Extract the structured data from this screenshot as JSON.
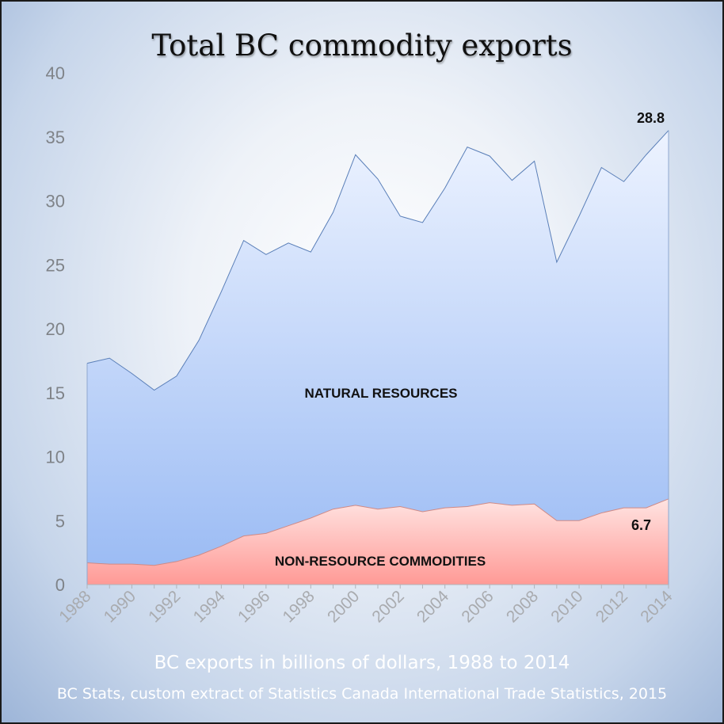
{
  "chart_data": {
    "type": "area",
    "title": "Total BC commodity exports",
    "subtitle": "BC exports in billions of dollars, 1988 to 2014",
    "source": "BC Stats, custom extract of Statistics Canada International Trade Statistics, 2015",
    "stacked": true,
    "x": [
      1988,
      1989,
      1990,
      1991,
      1992,
      1993,
      1994,
      1995,
      1996,
      1997,
      1998,
      1999,
      2000,
      2001,
      2002,
      2003,
      2004,
      2005,
      2006,
      2007,
      2008,
      2009,
      2010,
      2011,
      2012,
      2013,
      2014
    ],
    "x_tick_labels": [
      "1988",
      "1990",
      "1992",
      "1994",
      "1996",
      "1998",
      "2000",
      "2002",
      "2004",
      "2006",
      "2008",
      "2010",
      "2012",
      "2014"
    ],
    "ylim": [
      0,
      40
    ],
    "y_ticks": [
      0,
      5,
      10,
      15,
      20,
      25,
      30,
      35,
      40
    ],
    "grid": false,
    "series": [
      {
        "name": "NON-RESOURCE COMMODITIES",
        "color": "#ff9a96",
        "values": [
          1.7,
          1.6,
          1.6,
          1.5,
          1.8,
          2.3,
          3.0,
          3.8,
          4.0,
          4.6,
          5.2,
          5.9,
          6.2,
          5.9,
          6.1,
          5.7,
          6.0,
          6.1,
          6.4,
          6.2,
          6.3,
          5.0,
          5.0,
          5.6,
          6.0,
          6.0,
          6.7
        ]
      },
      {
        "name": "NATURAL RESOURCES",
        "color": "#9cbcf4",
        "values": [
          15.6,
          16.1,
          14.9,
          13.7,
          14.5,
          16.8,
          19.9,
          23.1,
          21.8,
          22.1,
          20.8,
          23.2,
          27.4,
          25.8,
          22.7,
          22.6,
          25.0,
          28.1,
          27.1,
          25.4,
          26.8,
          20.2,
          23.8,
          27.0,
          25.5,
          27.6,
          28.8
        ]
      }
    ],
    "data_labels": [
      {
        "text": "28.8",
        "series": "NATURAL RESOURCES",
        "x": 2014
      },
      {
        "text": "6.7",
        "series": "NON-RESOURCE COMMODITIES",
        "x": 2014
      }
    ]
  }
}
